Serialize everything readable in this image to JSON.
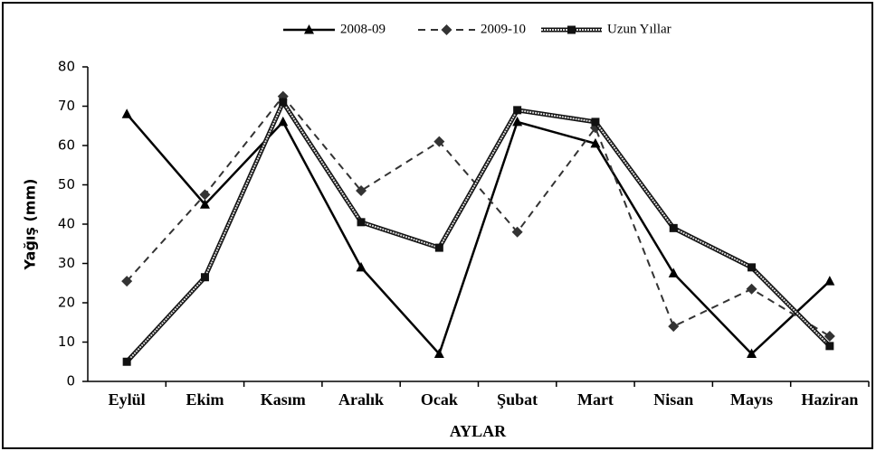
{
  "chart_data": {
    "type": "line",
    "x_label": "AYLAR",
    "y_label": "Yağış (mm)",
    "categories": [
      "Eylül",
      "Ekim",
      "Kasım",
      "Aralık",
      "Ocak",
      "Şubat",
      "Mart",
      "Nisan",
      "Mayıs",
      "Haziran"
    ],
    "series": [
      {
        "name": "2008-09",
        "color": "#000000",
        "marker": "triangle",
        "line": "solid",
        "values": [
          68,
          45,
          66,
          29,
          7,
          66,
          60.5,
          27.5,
          7,
          25.5
        ]
      },
      {
        "name": "2009-10",
        "color": "#333333",
        "marker": "diamond",
        "line": "dashed",
        "values": [
          25.5,
          47.5,
          72.5,
          48.5,
          61,
          38,
          64.5,
          14,
          23.5,
          11.5
        ]
      },
      {
        "name": "Uzun Yıllar",
        "color": "#111111",
        "marker": "square",
        "line": "double",
        "values": [
          5,
          26.5,
          71,
          40.5,
          34,
          69,
          66,
          39,
          29,
          9
        ]
      }
    ],
    "ylim": [
      0,
      80
    ],
    "yticks": [
      0,
      10,
      20,
      30,
      40,
      50,
      60,
      70,
      80
    ],
    "legend": "top"
  }
}
